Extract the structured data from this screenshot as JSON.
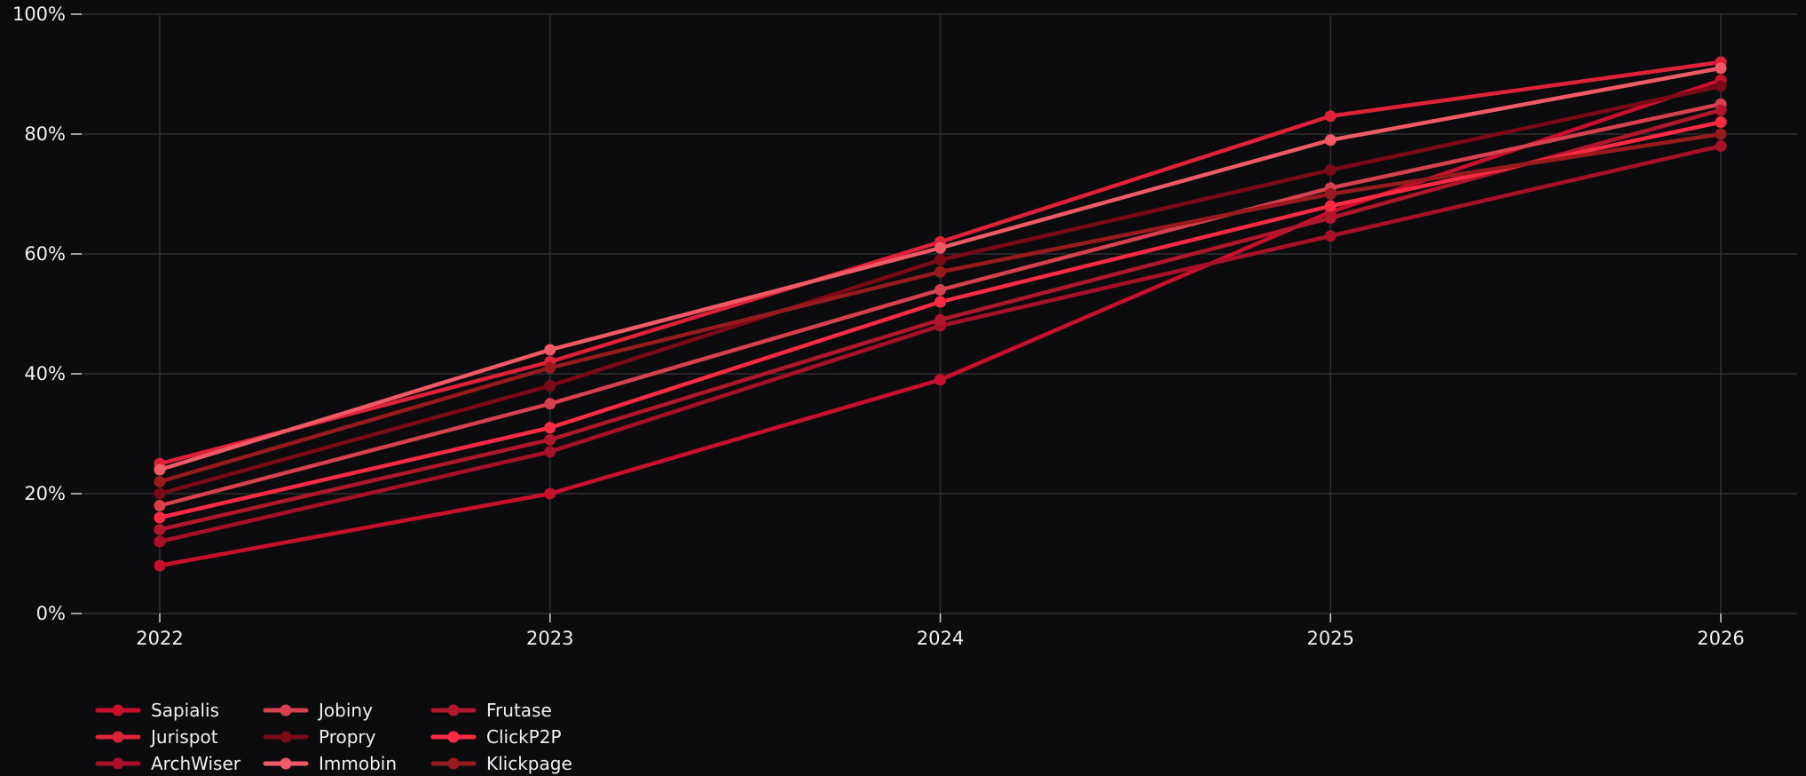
{
  "chart_data": {
    "type": "line",
    "x": [
      "2022",
      "2023",
      "2024",
      "2025",
      "2026"
    ],
    "ylim": [
      0,
      100
    ],
    "y_ticks": [
      "0%",
      "20%",
      "40%",
      "60%",
      "80%",
      "100%"
    ],
    "grid": true,
    "legend_placement": "bottom-left",
    "series": [
      {
        "name": "Sapialis",
        "values": [
          8,
          20,
          39,
          67,
          89
        ],
        "color": "#c8102e"
      },
      {
        "name": "Jurispot",
        "values": [
          25,
          42,
          62,
          83,
          92
        ],
        "color": "#e0213a"
      },
      {
        "name": "ArchWiser",
        "values": [
          12,
          27,
          48,
          63,
          78
        ],
        "color": "#a8102a"
      },
      {
        "name": "Jobiny",
        "values": [
          18,
          35,
          54,
          71,
          85
        ],
        "color": "#d6404f"
      },
      {
        "name": "Propry",
        "values": [
          20,
          38,
          59,
          74,
          88
        ],
        "color": "#7a0a18"
      },
      {
        "name": "Immobin",
        "values": [
          24,
          44,
          61,
          79,
          91
        ],
        "color": "#f05a66"
      },
      {
        "name": "Frutase",
        "values": [
          14,
          29,
          49,
          66,
          84
        ],
        "color": "#b0162c"
      },
      {
        "name": "ClickP2P",
        "values": [
          16,
          31,
          52,
          68,
          82
        ],
        "color": "#ff2a44"
      },
      {
        "name": "Klickpage",
        "values": [
          22,
          41,
          57,
          70,
          80
        ],
        "color": "#961a1e"
      }
    ]
  }
}
